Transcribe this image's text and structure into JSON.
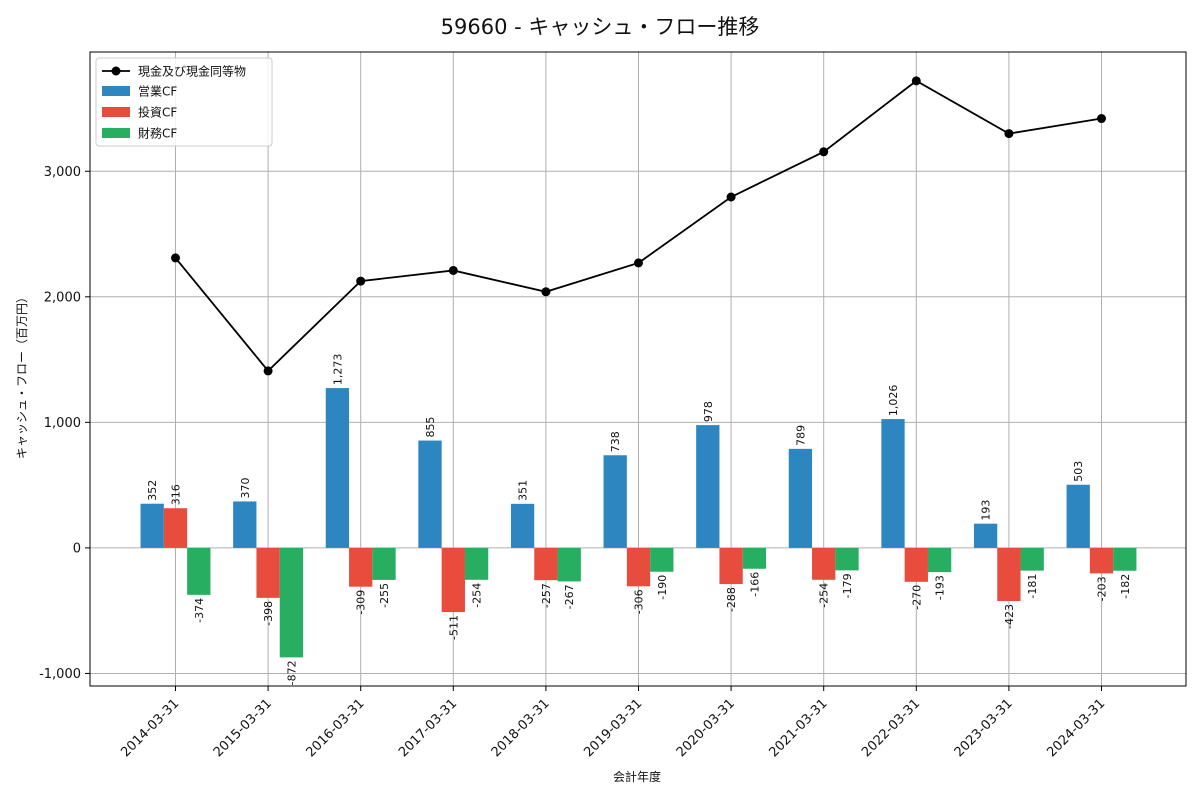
{
  "chart_data": {
    "type": "bar",
    "title": "59660 - キャッシュ・フロー推移",
    "xlabel": "会計年度",
    "ylabel": "キャッシュ・フロー（百万円）",
    "categories": [
      "2014-03-31",
      "2015-03-31",
      "2016-03-31",
      "2017-03-31",
      "2018-03-31",
      "2019-03-31",
      "2020-03-31",
      "2021-03-31",
      "2022-03-31",
      "2023-03-31",
      "2024-03-31"
    ],
    "ylim": [
      -1100,
      3950
    ],
    "yticks": [
      -1000,
      0,
      1000,
      2000,
      3000
    ],
    "ytick_labels": [
      "-1,000",
      "0",
      "1,000",
      "2,000",
      "3,000"
    ],
    "grid": true,
    "legend_position": "top-left",
    "line_series": {
      "name": "現金及び現金同等物",
      "color": "#000000",
      "values": [
        2310,
        1410,
        2125,
        2210,
        2040,
        2270,
        2795,
        3155,
        3720,
        3300,
        3420
      ]
    },
    "series": [
      {
        "name": "営業CF",
        "color": "#2e86c1",
        "values": [
          352,
          370,
          1273,
          855,
          351,
          738,
          978,
          789,
          1026,
          193,
          503
        ],
        "labels": [
          "352",
          "370",
          "1,273",
          "855",
          "351",
          "738",
          "978",
          "789",
          "1,026",
          "193",
          "503"
        ]
      },
      {
        "name": "投資CF",
        "color": "#e74c3c",
        "values": [
          316,
          -398,
          -309,
          -511,
          -257,
          -306,
          -288,
          -254,
          -270,
          -423,
          -203
        ],
        "labels": [
          "316",
          "-398",
          "-309",
          "-511",
          "-257",
          "-306",
          "-288",
          "-254",
          "-270",
          "-423",
          "-203"
        ]
      },
      {
        "name": "財務CF",
        "color": "#27ae60",
        "values": [
          -374,
          -872,
          -255,
          -254,
          -267,
          -190,
          -166,
          -179,
          -193,
          -181,
          -182
        ],
        "labels": [
          "-374",
          "-872",
          "-255",
          "-254",
          "-267",
          "-190",
          "-166",
          "-179",
          "-193",
          "-181",
          "-182"
        ]
      }
    ]
  }
}
